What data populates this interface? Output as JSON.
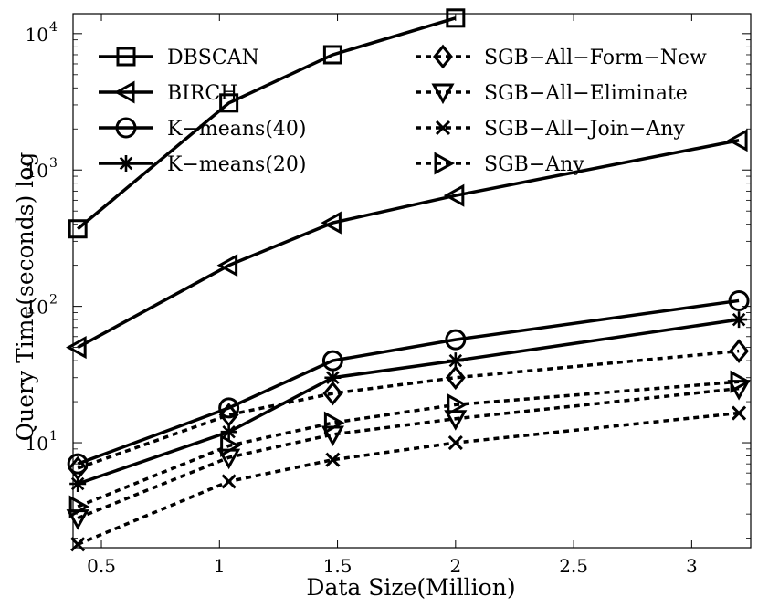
{
  "chart_data": {
    "type": "line",
    "xlabel": "Data Size(Million)",
    "ylabel": "Query Time(seconds) log",
    "yscale": "log",
    "xlim": [
      0.38,
      3.25
    ],
    "ylim": [
      1.7,
      14000
    ],
    "x": [
      0.4,
      1.04,
      1.48,
      2.0,
      3.2
    ],
    "x_ticks": [
      {
        "value": 0.5,
        "label": "0.5"
      },
      {
        "value": 1.0,
        "label": "1"
      },
      {
        "value": 1.5,
        "label": "1.5"
      },
      {
        "value": 2.0,
        "label": "2"
      },
      {
        "value": 2.5,
        "label": "2.5"
      },
      {
        "value": 3.0,
        "label": "3"
      }
    ],
    "y_ticks": [
      {
        "value": 10,
        "base": "10",
        "exp": "1"
      },
      {
        "value": 100,
        "base": "10",
        "exp": "2"
      },
      {
        "value": 1000,
        "base": "10",
        "exp": "3"
      },
      {
        "value": 10000,
        "base": "10",
        "exp": "4"
      }
    ],
    "series": [
      {
        "name": "DBSCAN",
        "marker": "square",
        "dashed": false,
        "values": [
          370,
          3100,
          7000,
          13000,
          null
        ]
      },
      {
        "name": "BIRCH",
        "marker": "triangle-left",
        "dashed": false,
        "values": [
          50,
          200,
          410,
          650,
          1650
        ]
      },
      {
        "name": "K−means(40)",
        "marker": "circle",
        "dashed": false,
        "values": [
          7,
          18,
          40,
          57,
          110
        ]
      },
      {
        "name": "K−means(20)",
        "marker": "asterisk",
        "dashed": false,
        "values": [
          5,
          12,
          30,
          40,
          80
        ]
      },
      {
        "name": "SGB−All−Form−New",
        "marker": "diamond",
        "dashed": true,
        "values": [
          6.5,
          16,
          23,
          30,
          47
        ]
      },
      {
        "name": "SGB−All−Eliminate",
        "marker": "triangle-down",
        "dashed": true,
        "values": [
          2.8,
          7.8,
          11.5,
          15,
          25
        ]
      },
      {
        "name": "SGB−All−Join−Any",
        "marker": "x",
        "dashed": true,
        "values": [
          1.8,
          5.2,
          7.5,
          10,
          16.5
        ]
      },
      {
        "name": "SGB−Any",
        "marker": "triangle-right",
        "dashed": true,
        "values": [
          3.4,
          9.5,
          14,
          19,
          28
        ]
      }
    ],
    "legend_location": "top, two columns"
  }
}
